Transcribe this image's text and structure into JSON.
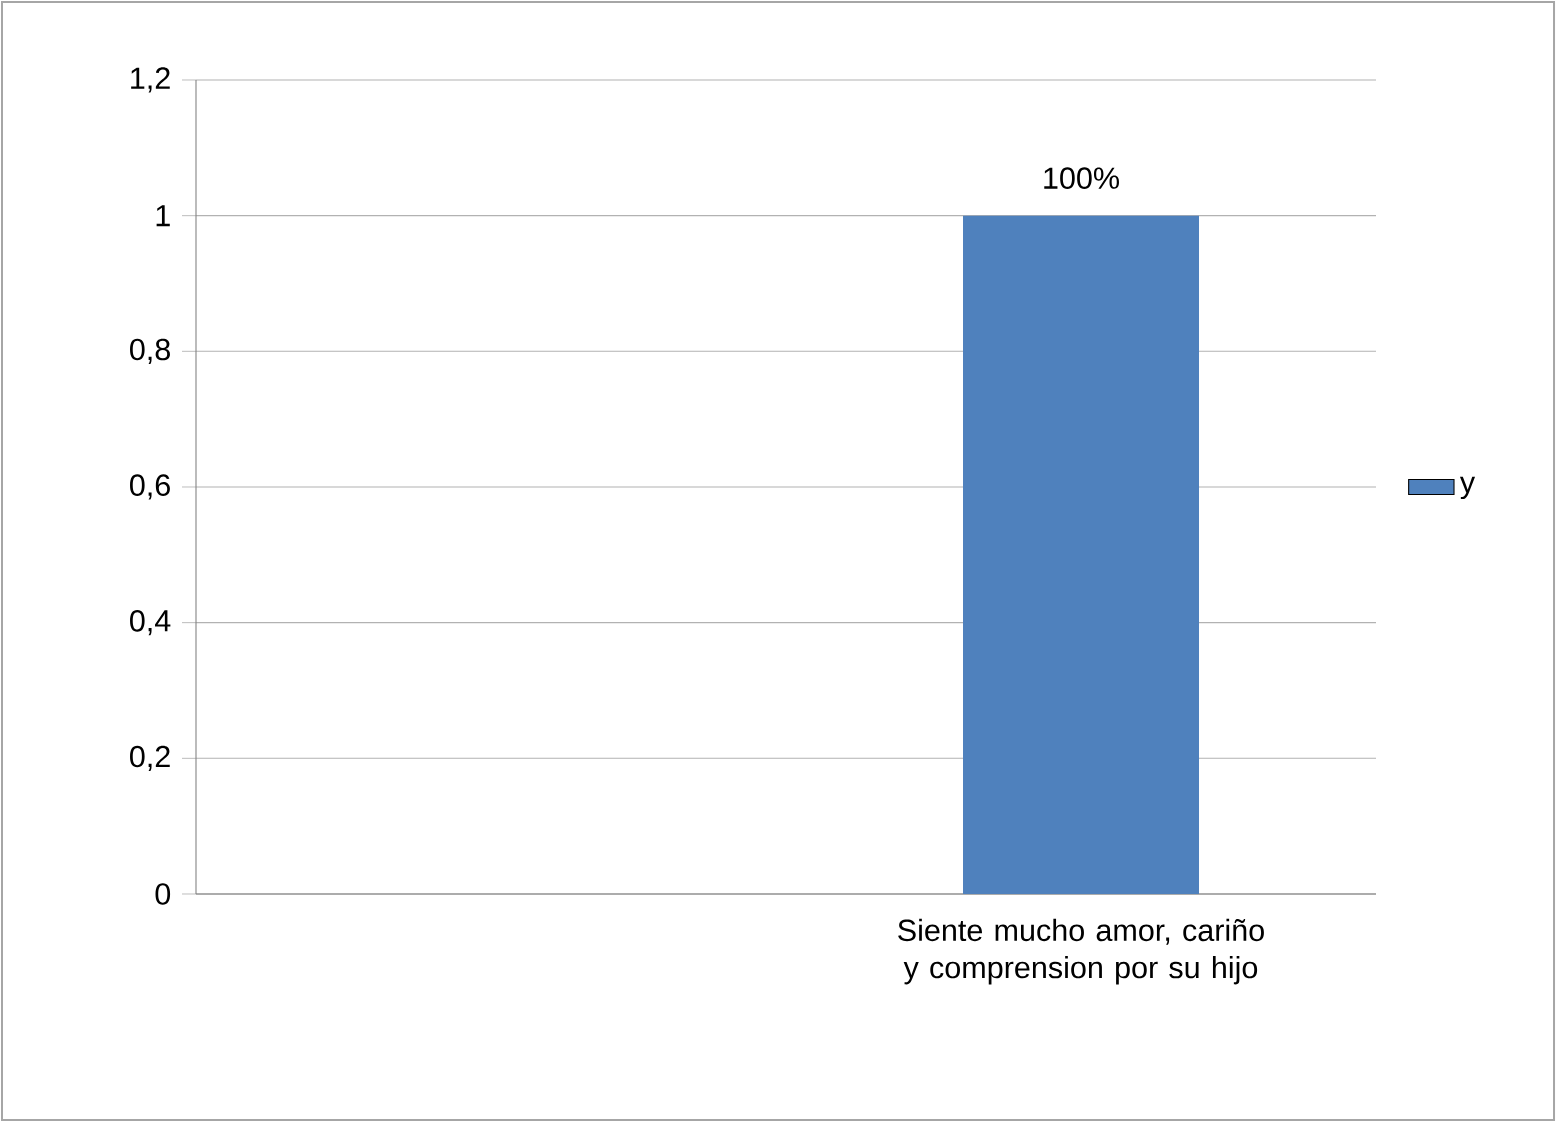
{
  "chart_data": {
    "type": "bar",
    "categories": [
      null,
      "Siente mucho amor, cariño y comprension por su hijo"
    ],
    "series": [
      {
        "name": "y",
        "color": "#4f81bd",
        "values": [
          null,
          1
        ],
        "value_labels": [
          null,
          "100%"
        ]
      }
    ],
    "ylim": [
      0,
      1.2
    ],
    "yticks": [
      0,
      {
        "value": 0.2,
        "label": "0,2"
      },
      {
        "value": 0.4,
        "label": "0,4"
      },
      {
        "value": 0.6,
        "label": "0,6"
      },
      {
        "value": 0.8,
        "label": "0,8"
      },
      1,
      {
        "value": 1.2,
        "label": "1,2"
      }
    ],
    "grid": "y",
    "legend": "right"
  }
}
